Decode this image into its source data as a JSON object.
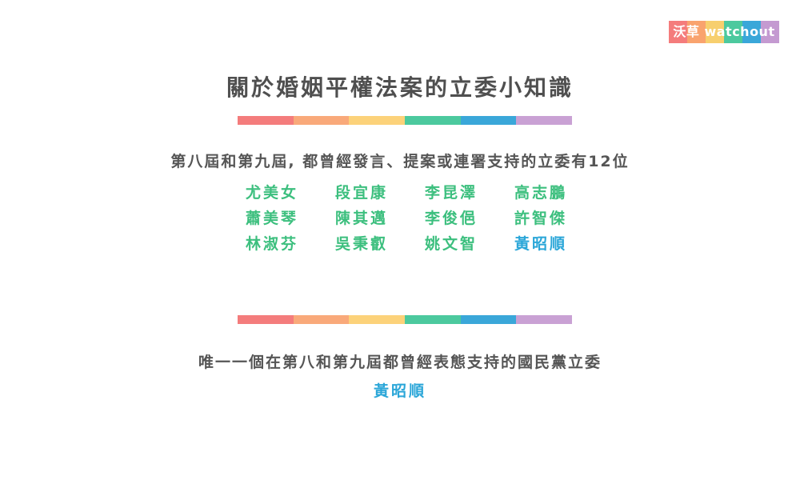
{
  "logo": {
    "text": "沃草 watchout",
    "colors": [
      "#f47c7c",
      "#f9a36e",
      "#f7cf6e",
      "#4cc99e",
      "#3aa7d9",
      "#c49ad1"
    ]
  },
  "title": "關於婚姻平權法案的立委小知識",
  "rainbow_colors": [
    "#f47c7c",
    "#f9a97a",
    "#fcd27a",
    "#4cc99e",
    "#3aa7d9",
    "#c9a1d4"
  ],
  "section1": {
    "subtitle": "第八屆和第九屆, 都曾經發言、提案或連署支持的立委有12位"
  },
  "legislators": [
    {
      "name": "尤美女",
      "color": "#3cbf7e"
    },
    {
      "name": "段宜康",
      "color": "#3cbf7e"
    },
    {
      "name": "李昆澤",
      "color": "#3cbf7e"
    },
    {
      "name": "高志鵬",
      "color": "#3cbf7e"
    },
    {
      "name": "蕭美琴",
      "color": "#3cbf7e"
    },
    {
      "name": "陳其邁",
      "color": "#3cbf7e"
    },
    {
      "name": "李俊俋",
      "color": "#3cbf7e"
    },
    {
      "name": "許智傑",
      "color": "#3cbf7e"
    },
    {
      "name": "林淑芬",
      "color": "#3cbf7e"
    },
    {
      "name": "吳秉叡",
      "color": "#3cbf7e"
    },
    {
      "name": "姚文智",
      "color": "#3cbf7e"
    },
    {
      "name": "黃昭順",
      "color": "#2aa6d8"
    }
  ],
  "section2": {
    "subtitle": "唯一一個在第八和第九屆都曾經表態支持的國民黨立委",
    "highlight": "黃昭順",
    "highlight_color": "#2aa6d8"
  }
}
